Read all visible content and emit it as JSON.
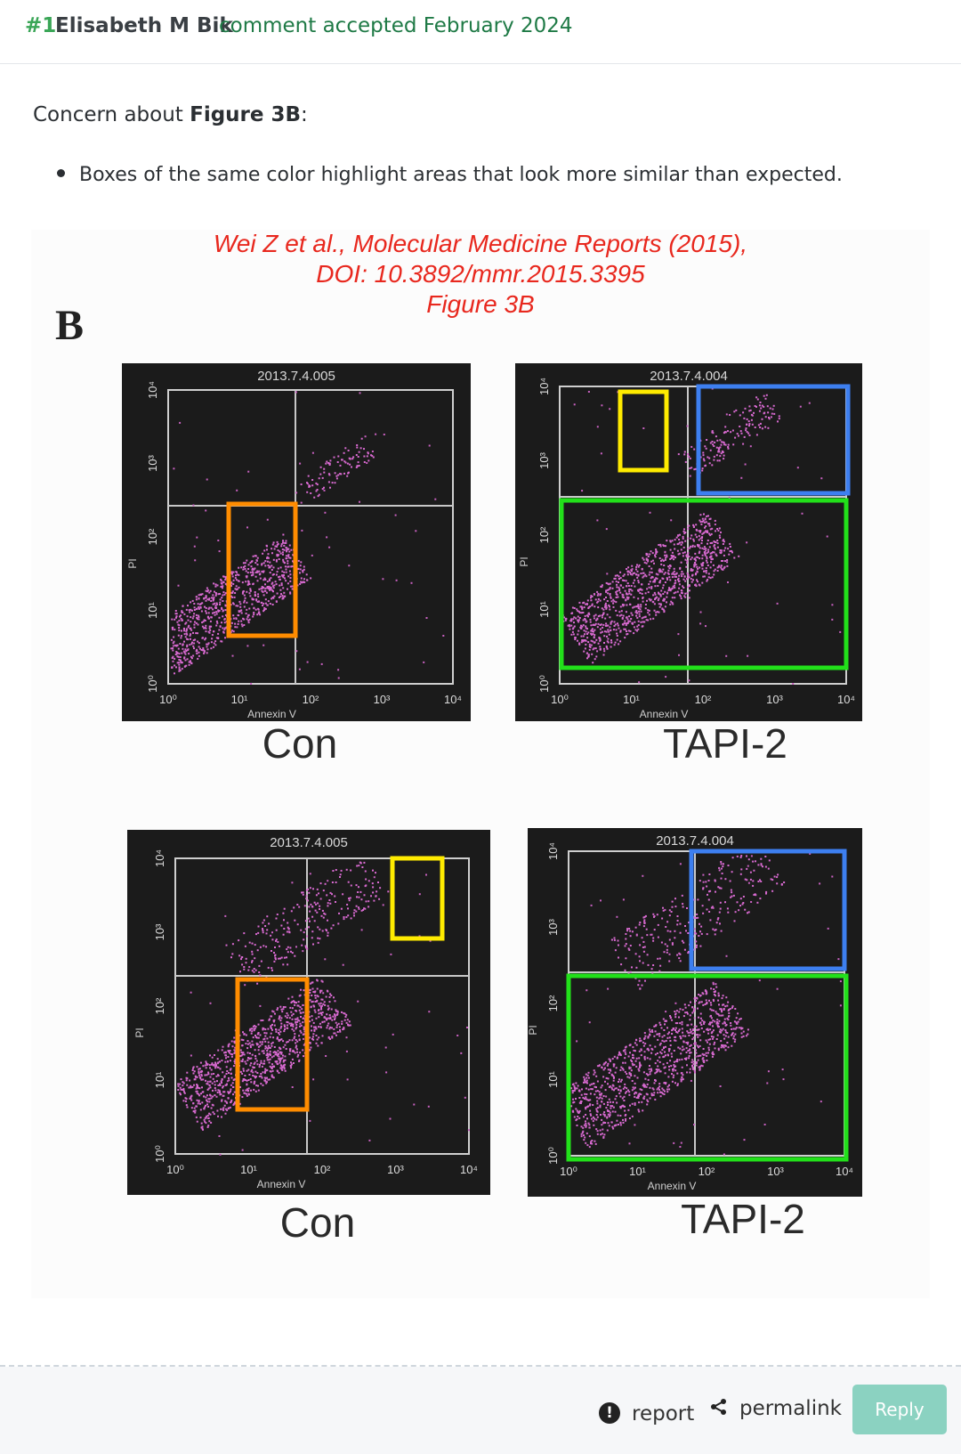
{
  "header": {
    "number": "#1",
    "author": "Elisabeth M Bik",
    "meta": "comment accepted February 2024"
  },
  "comment": {
    "concern_prefix": "Concern about ",
    "concern_bold": "Figure 3B",
    "concern_suffix": ":",
    "bullet": "Boxes of the same color highlight areas that look more similar than expected."
  },
  "figure": {
    "citation_line1": "Wei Z et al., Molecular Medicine Reports (2015),",
    "citation_line2": "DOI: 10.3892/mmr.2015.3395",
    "citation_line3": "Figure 3B",
    "panel_letter": "B",
    "panels": [
      {
        "title": "2013.7.4.005",
        "label": "Con",
        "xaxis": "Annexin V",
        "yaxis": "PI"
      },
      {
        "title": "2013.7.4.004",
        "label": "TAPI-2",
        "xaxis": "Annexin V",
        "yaxis": "PI"
      },
      {
        "title": "2013.7.4.005",
        "label": "Con",
        "xaxis": "Annexin V",
        "yaxis": "PI"
      },
      {
        "title": "2013.7.4.004",
        "label": "TAPI-2",
        "xaxis": "Annexin V",
        "yaxis": "PI"
      }
    ],
    "tick_labels": [
      "10⁰",
      "10¹",
      "10²",
      "10³",
      "10⁴"
    ],
    "highlight_colors": {
      "orange": "#ff8c00",
      "yellow": "#ffeb00",
      "blue": "#3d7ff0",
      "green": "#22e01a"
    }
  },
  "footer": {
    "report_label": "report",
    "permalink_label": "permalink",
    "reply_label": "Reply",
    "reply_color": "#8bd2c1"
  }
}
